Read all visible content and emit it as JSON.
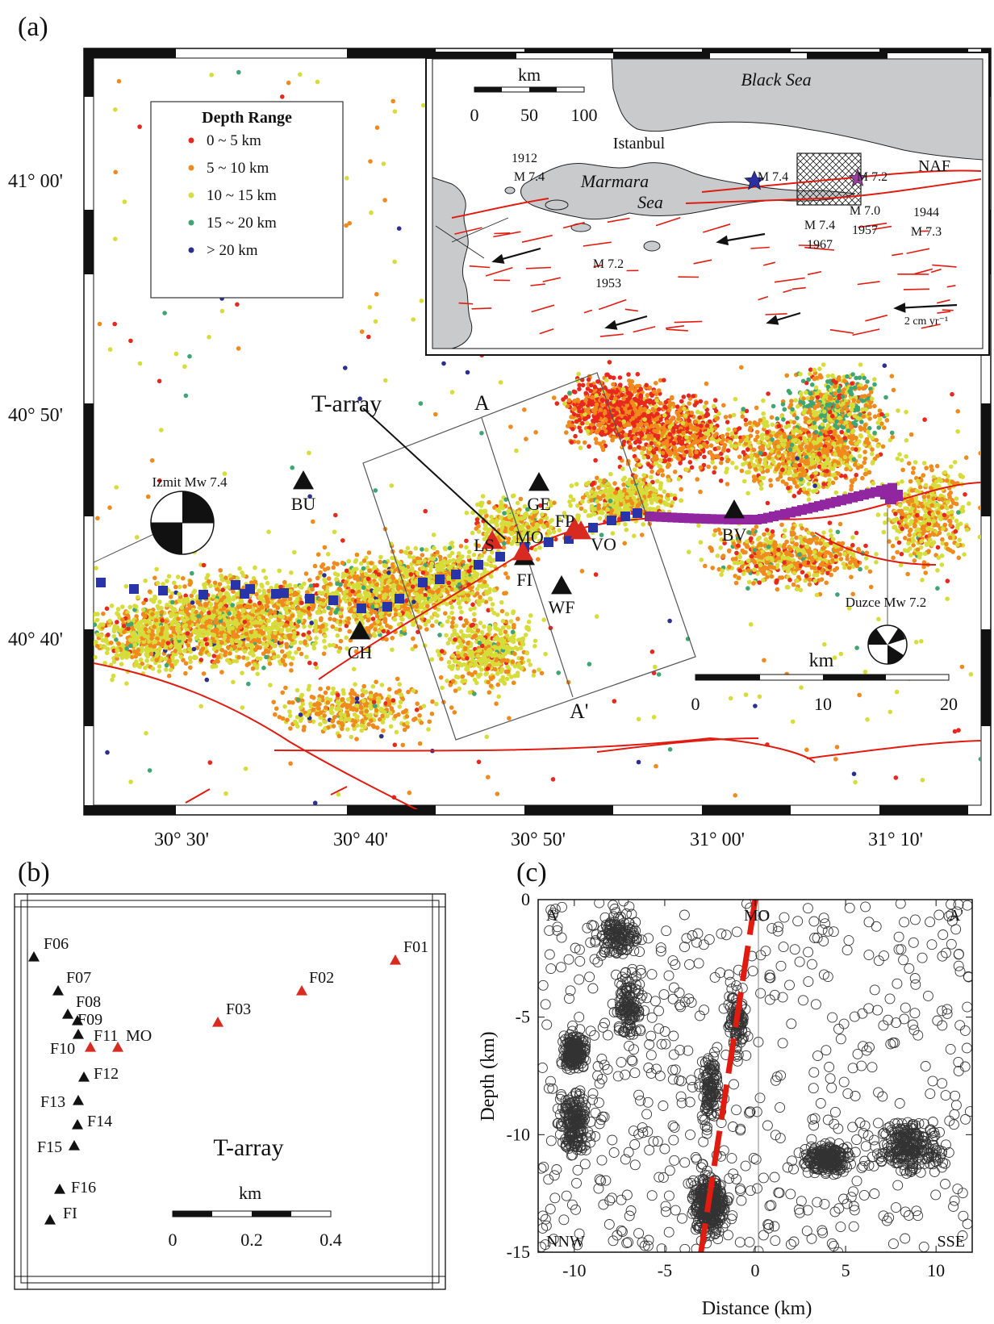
{
  "panel_a": {
    "label": "(a)",
    "lat_ticks": [
      "41° 00'",
      "40° 50'",
      "40° 40'"
    ],
    "lon_ticks": [
      "30° 30'",
      "30° 40'",
      "30° 50'",
      "31° 00'",
      "31° 10'"
    ],
    "legend": {
      "title": "Depth Range",
      "items": [
        {
          "label": "0 ~  5 km",
          "color": "#e8281e"
        },
        {
          "label": "5 ~ 10 km",
          "color": "#f08a1c"
        },
        {
          "label": "10 ~ 15 km",
          "color": "#d6dd3a"
        },
        {
          "label": "15 ~ 20 km",
          "color": "#3fa573"
        },
        {
          "label": "> 20 km",
          "color": "#2b2f8f"
        }
      ]
    },
    "stations": [
      "BU",
      "GE",
      "BV",
      "CH",
      "WF",
      "FI",
      "VO",
      "LS",
      "MO",
      "FP"
    ],
    "array_label": "T-array",
    "section_start": "A",
    "section_end": "A'",
    "events": [
      {
        "name": "Izmit Mw 7.4"
      },
      {
        "name": "Duzce Mw 7.2"
      }
    ],
    "scale": {
      "unit": "km",
      "ticks": [
        "0",
        "10",
        "20"
      ]
    },
    "inset": {
      "sea_black": "Black Sea",
      "sea_marmara_1": "Marmara",
      "sea_marmara_2": "Sea",
      "city": "Istanbul",
      "fault": "NAF",
      "scale": {
        "unit": "km",
        "ticks": [
          "0",
          "50",
          "100"
        ]
      },
      "quakes": [
        {
          "year": "1912",
          "mag": "M 7.4"
        },
        {
          "year": "",
          "mag": "M 7.4"
        },
        {
          "year": "",
          "mag": "M 7.2"
        },
        {
          "year": "1967",
          "mag": "M 7.4"
        },
        {
          "year": "1957",
          "mag": "M 7.0"
        },
        {
          "year": "1944",
          "mag": "M 7.3"
        },
        {
          "year": "1953",
          "mag": "M 7.2"
        }
      ],
      "velocity": "2 cm yr⁻¹"
    }
  },
  "panel_b": {
    "label": "(b)",
    "title": "T-array",
    "stations": [
      {
        "name": "F01",
        "type": "red"
      },
      {
        "name": "F02",
        "type": "red"
      },
      {
        "name": "F03",
        "type": "red"
      },
      {
        "name": "F06",
        "type": "black"
      },
      {
        "name": "F07",
        "type": "black"
      },
      {
        "name": "F08",
        "type": "black"
      },
      {
        "name": "F09",
        "type": "black"
      },
      {
        "name": "F10",
        "type": "red"
      },
      {
        "name": "F11",
        "type": "black"
      },
      {
        "name": "MO",
        "type": "red"
      },
      {
        "name": "F12",
        "type": "black"
      },
      {
        "name": "F13",
        "type": "black"
      },
      {
        "name": "F14",
        "type": "black"
      },
      {
        "name": "F15",
        "type": "black"
      },
      {
        "name": "F16",
        "type": "black"
      },
      {
        "name": "FI",
        "type": "black"
      }
    ],
    "scale": {
      "unit": "km",
      "ticks": [
        "0",
        "0.2",
        "0.4"
      ]
    }
  },
  "panel_c": {
    "label": "(c)",
    "xlabel": "Distance (km)",
    "ylabel": "Depth (km)",
    "x_ticks": [
      "-10",
      "-5",
      "0",
      "5",
      "10"
    ],
    "y_ticks": [
      "0",
      "-5",
      "-10",
      "-15"
    ],
    "corner_tl": "A",
    "corner_tr": "A'",
    "corner_bl": "NNW",
    "corner_br": "SSE",
    "station": "MO"
  },
  "chart_data": {
    "type": "scatter",
    "x": [
      -10,
      -7.5,
      -7,
      -10,
      -2.5,
      8.5,
      4,
      -2.5,
      -1
    ],
    "y": [
      -6.5,
      -1.5,
      -4.5,
      -9.5,
      -13,
      -10.5,
      -11,
      -8,
      -5
    ],
    "xlabel": "Distance (km)",
    "ylabel": "Depth (km)",
    "xlim": [
      -12,
      12
    ],
    "ylim": [
      -15,
      0
    ],
    "grid": false
  }
}
